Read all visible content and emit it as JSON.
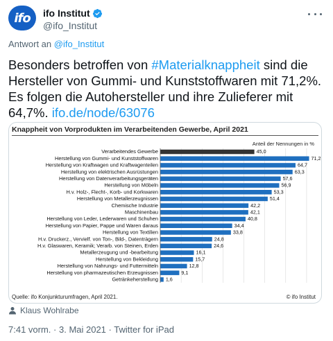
{
  "account": {
    "name": "ifo Institut",
    "handle": "@ifo_Institut",
    "avatar_text": "ifo"
  },
  "reply_to": {
    "prefix": "Antwort an",
    "handle": "@ifo_Institut"
  },
  "tweet": {
    "text_part1": "Besonders betroffen von ",
    "hashtag": "#Materialknappheit",
    "text_part2": " sind die Hersteller von Gummi- und Kunststoffwaren mit 71,2%. Es folgen die Autohersteller und ihre Zulieferer mit 64,7%.  ",
    "link": "ifo.de/node/63076"
  },
  "chart_data": {
    "type": "bar",
    "title": "Knappheit von Vorprodukten im Verarbeitenden Gewerbe, April 2021",
    "ylabel": "Anteil der Nennungen in %",
    "xlim": [
      0,
      75
    ],
    "categories": [
      "Verarbeitendes Gewerbe",
      "Herstellung von Gummi- und Kunststoffwaren",
      "Herstellung von Kraftwagen und Kraftwagenteilen",
      "Herstellung von elektrischen Ausrüstungen",
      "Herstellung von Datenverarbeitungsgeräten",
      "Herstellung von Möbeln",
      "H.v. Holz-, Flecht-, Korb- und Korkwaren",
      "Herstellung von Metallerzeugnissen",
      "Chemische Industrie",
      "Maschinenbau",
      "Herstellung von Leder, Lederwaren und Schuhen",
      "Herstellung von Papier, Pappe und Waren daraus",
      "Herstellung von Textilien",
      "H.v. Druckerz., Vervielf. von Ton-, Bild-, Datenträgern",
      "H.v. Glaswaren, Keramik; Verarb. von Steinen, Erden",
      "Metallerzeugung und -bearbeitung",
      "Herstellung von Bekleidung",
      "Herstellung von Nahrungs- und Futtermitteln",
      "Herstellung von pharmazeutischen Erzeugnissen",
      "Getränkeherstellung"
    ],
    "values": [
      45.0,
      71.2,
      64.7,
      63.3,
      57.6,
      56.9,
      53.3,
      51.4,
      42.2,
      42.1,
      40.8,
      34.4,
      33.8,
      24.8,
      24.6,
      16.1,
      15.7,
      12.8,
      9.1,
      1.6
    ],
    "value_labels": [
      "45,0",
      "71,2",
      "64,7",
      "63,3",
      "57,6",
      "56,9",
      "53,3",
      "51,4",
      "42,2",
      "42,1",
      "40,8",
      "34,4",
      "33,8",
      "24,8",
      "24,6",
      "16,1",
      "15,7",
      "12,8",
      "9,1",
      "1,6"
    ],
    "colors": {
      "highlight": "#333333",
      "bar": "#1f6fbf",
      "grid": "#d0d0d0"
    },
    "source": "Quelle: ifo Konjunkturumfragen, April 2021.",
    "copyright": "© ifo Institut"
  },
  "attribution": "Klaus Wohlrabe",
  "footer": {
    "time": "7:41 vorm.",
    "sep": " · ",
    "date": "3. Mai 2021",
    "client": "Twitter for iPad"
  }
}
